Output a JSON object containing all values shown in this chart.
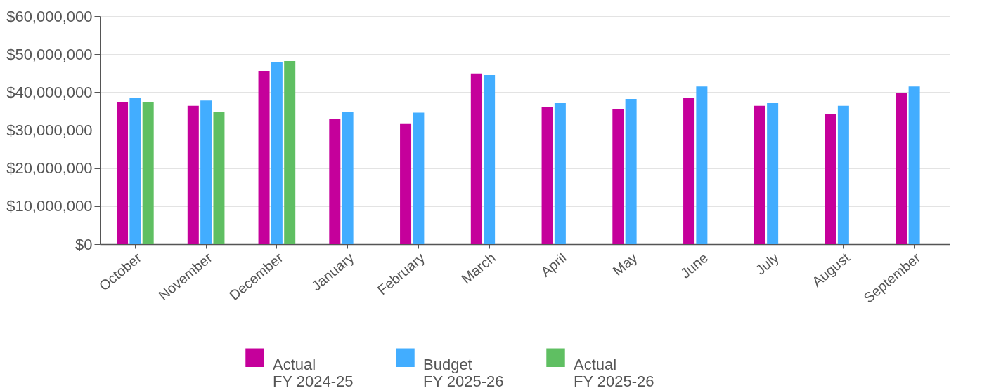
{
  "chart_data": {
    "type": "bar",
    "categories": [
      "October",
      "November",
      "December",
      "January",
      "February",
      "March",
      "April",
      "May",
      "June",
      "July",
      "August",
      "September"
    ],
    "series": [
      {
        "name": "Actual\nFY 2024-25",
        "color": "#c5009b",
        "values": [
          37500000,
          36400000,
          45600000,
          33000000,
          31600000,
          44900000,
          36000000,
          35600000,
          38600000,
          36400000,
          34200000,
          39700000
        ]
      },
      {
        "name": "Budget\nFY 2025-26",
        "color": "#42adff",
        "values": [
          38600000,
          37800000,
          47800000,
          34900000,
          34600000,
          44500000,
          37100000,
          38200000,
          41500000,
          37100000,
          36400000,
          41500000
        ]
      },
      {
        "name": "Actual\nFY 2025-26",
        "color": "#5fbf62",
        "values": [
          37500000,
          34900000,
          48200000,
          null,
          null,
          null,
          null,
          null,
          null,
          null,
          null,
          null
        ]
      }
    ],
    "ylim": [
      0,
      60000000
    ],
    "yticks": [
      {
        "value": 0,
        "label": "$0"
      },
      {
        "value": 10000000,
        "label": "$10,000,000"
      },
      {
        "value": 20000000,
        "label": "$20,000,000"
      },
      {
        "value": 30000000,
        "label": "$30,000,000"
      },
      {
        "value": 40000000,
        "label": "$40,000,000"
      },
      {
        "value": 50000000,
        "label": "$50,000,000"
      },
      {
        "value": 60000000,
        "label": "$60,000,000"
      }
    ],
    "grid": "y",
    "legend": "bottom"
  }
}
